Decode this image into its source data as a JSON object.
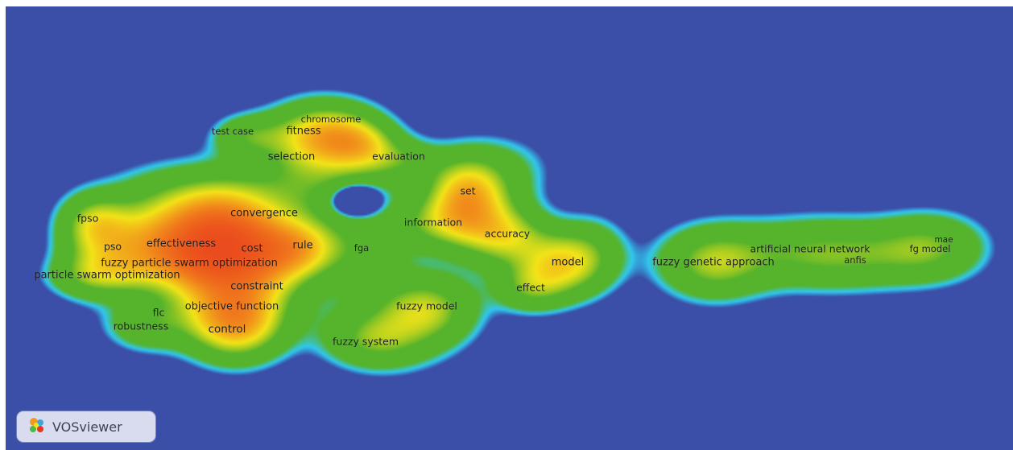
{
  "brand": {
    "name": "VOSviewer",
    "icon": "vosviewer-logo-icon"
  },
  "colors": {
    "background": "#3b4ea8",
    "ring": "#31c7ee",
    "low": "#56b42c",
    "mid": "#f3e418",
    "high": "#e8351d"
  },
  "terms": [
    {
      "label": "chromosome",
      "size": "s"
    },
    {
      "label": "test case",
      "size": "s"
    },
    {
      "label": "fitness",
      "size": "l"
    },
    {
      "label": "selection",
      "size": "l"
    },
    {
      "label": "evaluation",
      "size": "m"
    },
    {
      "label": "set",
      "size": "m"
    },
    {
      "label": "convergence",
      "size": "l"
    },
    {
      "label": "information",
      "size": "m"
    },
    {
      "label": "fpso",
      "size": "m"
    },
    {
      "label": "accuracy",
      "size": "m"
    },
    {
      "label": "pso",
      "size": "m"
    },
    {
      "label": "effectiveness",
      "size": "l"
    },
    {
      "label": "cost",
      "size": "l"
    },
    {
      "label": "rule",
      "size": "l"
    },
    {
      "label": "fga",
      "size": "s"
    },
    {
      "label": "fuzzy particle swarm optimization",
      "size": "l"
    },
    {
      "label": "model",
      "size": "l"
    },
    {
      "label": "particle swarm optimization",
      "size": "l"
    },
    {
      "label": "constraint",
      "size": "l"
    },
    {
      "label": "effect",
      "size": "m"
    },
    {
      "label": "fuzzy model",
      "size": "m"
    },
    {
      "label": "objective function",
      "size": "l"
    },
    {
      "label": "flc",
      "size": "m"
    },
    {
      "label": "robustness",
      "size": "m"
    },
    {
      "label": "control",
      "size": "xl"
    },
    {
      "label": "fuzzy system",
      "size": "m"
    },
    {
      "label": "fuzzy genetic approach",
      "size": "l"
    },
    {
      "label": "artificial neural network",
      "size": "m"
    },
    {
      "label": "anfis",
      "size": "s"
    },
    {
      "label": "mae",
      "size": "xs"
    },
    {
      "label": "fg model",
      "size": "s"
    }
  ]
}
